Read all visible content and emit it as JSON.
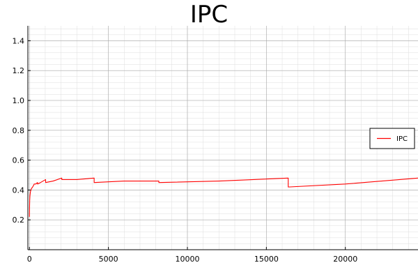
{
  "chart_data": {
    "type": "line",
    "title": "IPC",
    "xlabel": "",
    "ylabel": "",
    "xlim": [
      -100,
      24600
    ],
    "ylim": [
      0,
      1.5
    ],
    "x_ticks": [
      0,
      5000,
      10000,
      15000,
      20000
    ],
    "y_ticks": [
      0.2,
      0.4,
      0.6,
      0.8,
      1.0,
      1.2,
      1.4
    ],
    "x_tick_labels": [
      "0",
      "5000",
      "10000",
      "15000",
      "20000"
    ],
    "y_tick_labels": [
      "0.2",
      "0.4",
      "0.6",
      "0.8",
      "1.0",
      "1.2",
      "1.4"
    ],
    "grid": true,
    "minor_grid": true,
    "legend_position": "right",
    "series": [
      {
        "name": "IPC",
        "color": "#ff0000",
        "x": [
          0,
          4,
          8,
          16,
          30,
          64,
          100,
          128,
          200,
          256,
          300,
          400,
          512,
          512,
          700,
          1024,
          1024,
          1500,
          2048,
          2048,
          3000,
          4096,
          4096,
          6000,
          8192,
          8192,
          12000,
          16384,
          16384,
          20000,
          24600
        ],
        "y": [
          0.22,
          0.26,
          0.29,
          0.33,
          0.36,
          0.39,
          0.4,
          0.41,
          0.42,
          0.43,
          0.44,
          0.44,
          0.45,
          0.44,
          0.45,
          0.47,
          0.45,
          0.46,
          0.48,
          0.47,
          0.47,
          0.48,
          0.45,
          0.46,
          0.46,
          0.45,
          0.46,
          0.48,
          0.42,
          0.44,
          0.48
        ]
      }
    ]
  }
}
